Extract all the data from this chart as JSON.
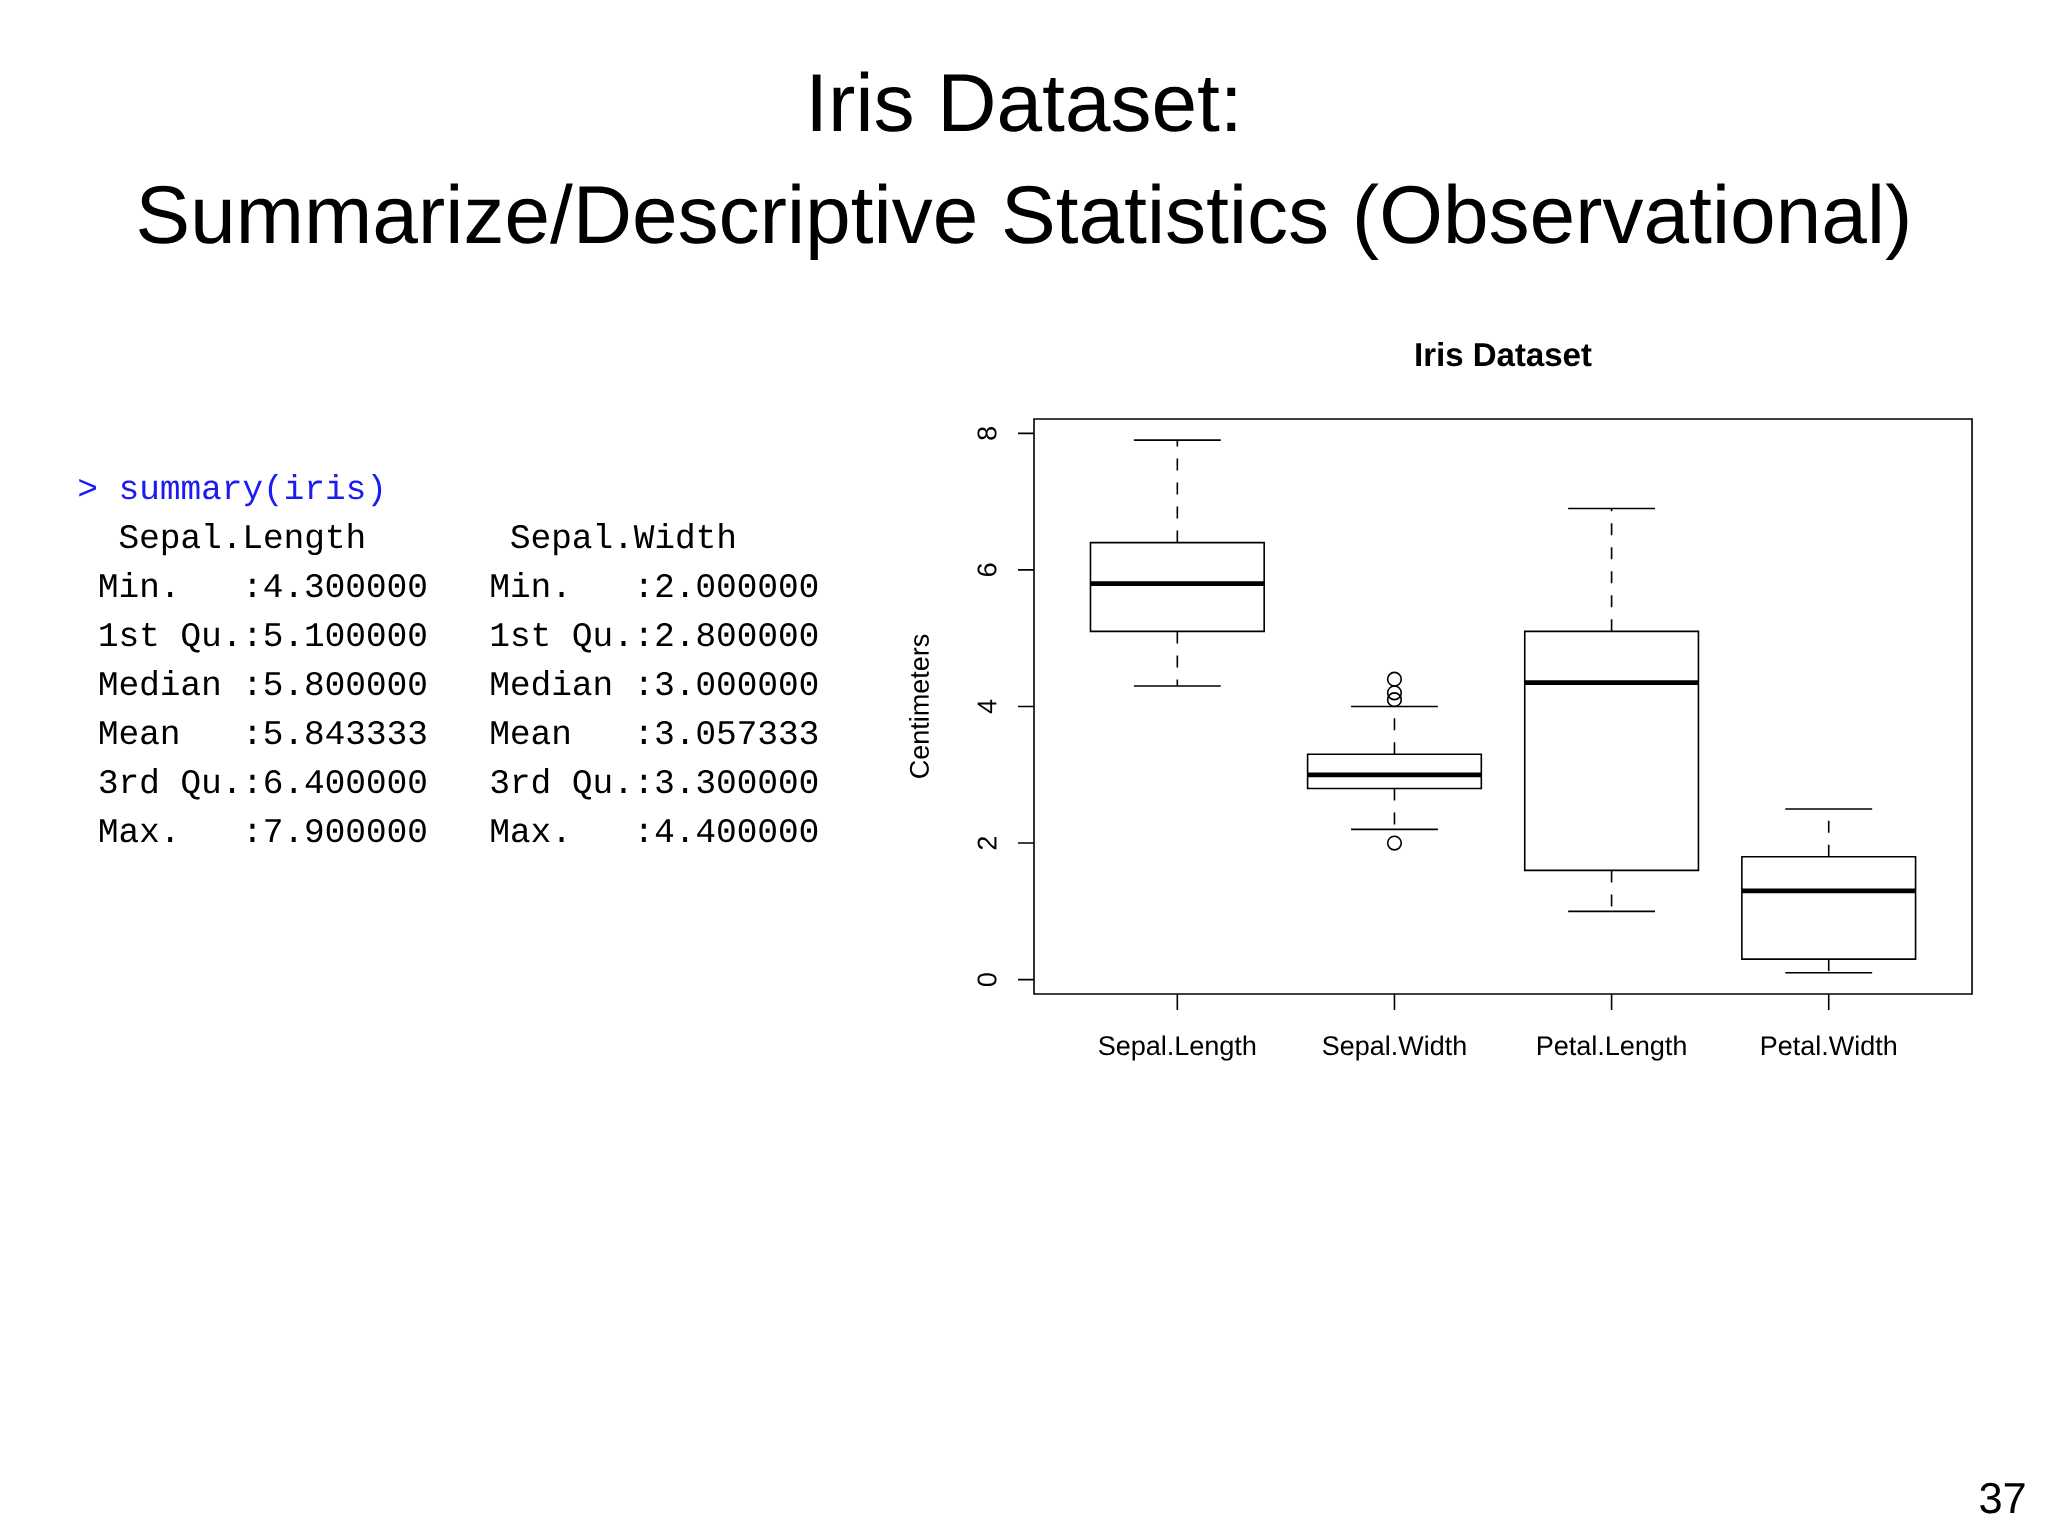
{
  "chart_data": [
    {
      "type": "other",
      "title": "Iris Dataset:",
      "subtitle": "Summarize/Descriptive Statistics (Observational)",
      "annotations": [
        "> summary(iris)",
        "Sepal.Length",
        "Sepal.Width",
        "Min.",
        ":4.300000",
        "Min.",
        ":2.000000",
        "1st Qu.",
        ":5.100000",
        "1st Qu.",
        ":2.800000",
        "Median",
        ":5.800000",
        "Median",
        ":3.000000",
        "Mean",
        ":5.843333",
        "Mean",
        ":3.057333",
        "3rd Qu.",
        ":6.400000",
        "3rd Qu.",
        ":3.300000",
        "Max.",
        ":7.900000",
        "Max.",
        ":4.400000",
        "37"
      ]
    },
    {
      "type": "box",
      "title": "Iris Dataset",
      "ylabel": "Centimeters",
      "categories": [
        "Sepal.Length",
        "Sepal.Width",
        "Petal.Length",
        "Petal.Width"
      ],
      "boxes": [
        {
          "low": 4.3,
          "q1": 5.1,
          "median": 5.8,
          "q3": 6.4,
          "high": 7.9
        },
        {
          "low": 2.2,
          "q1": 2.8,
          "median": 3.0,
          "q3": 3.3,
          "high": 4.0,
          "outliers": [
            4.4,
            4.1,
            4.2,
            2.0
          ]
        },
        {
          "low": 1.0,
          "q1": 1.6,
          "median": 4.35,
          "q3": 5.1,
          "high": 6.9
        },
        {
          "low": 0.1,
          "q1": 0.3,
          "median": 1.3,
          "q3": 1.8,
          "high": 2.5
        }
      ],
      "ylim": [
        -0.21,
        8.21
      ],
      "yticks": [
        0,
        2,
        4,
        6,
        8
      ]
    }
  ]
}
